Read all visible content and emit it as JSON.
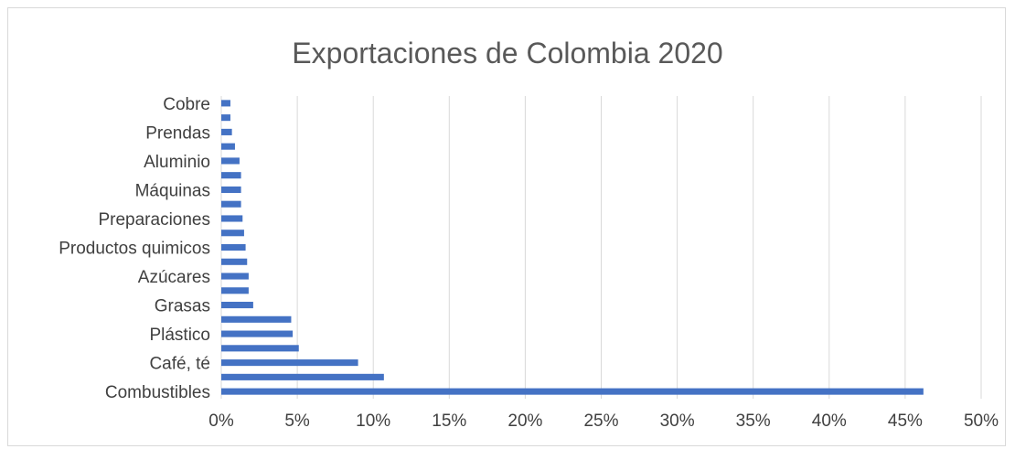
{
  "chart_data": {
    "type": "bar",
    "orientation": "horizontal",
    "title": "Exportaciones de Colombia 2020",
    "xlabel": "",
    "ylabel": "",
    "xlim": [
      0,
      0.5
    ],
    "x_tick_values": [
      0,
      0.05,
      0.1,
      0.15,
      0.2,
      0.25,
      0.3,
      0.35,
      0.4,
      0.45,
      0.5
    ],
    "x_tick_labels": [
      "0%",
      "5%",
      "10%",
      "15%",
      "20%",
      "25%",
      "30%",
      "35%",
      "40%",
      "45%",
      "50%"
    ],
    "grid": true,
    "legend": "none",
    "bar_color": "#4472c4",
    "categories": [
      "Combustibles",
      "",
      "Café, té",
      "",
      "Plástico",
      "",
      "Grasas",
      "",
      "Azúcares",
      "",
      "Productos quimicos",
      "",
      "Preparaciones",
      "",
      "Máquinas",
      "",
      "Aluminio",
      "",
      "Prendas",
      "",
      "Cobre"
    ],
    "values": [
      0.462,
      0.107,
      0.09,
      0.051,
      0.047,
      0.046,
      0.021,
      0.018,
      0.018,
      0.017,
      0.016,
      0.015,
      0.014,
      0.013,
      0.013,
      0.013,
      0.012,
      0.009,
      0.007,
      0.006,
      0.006
    ]
  }
}
